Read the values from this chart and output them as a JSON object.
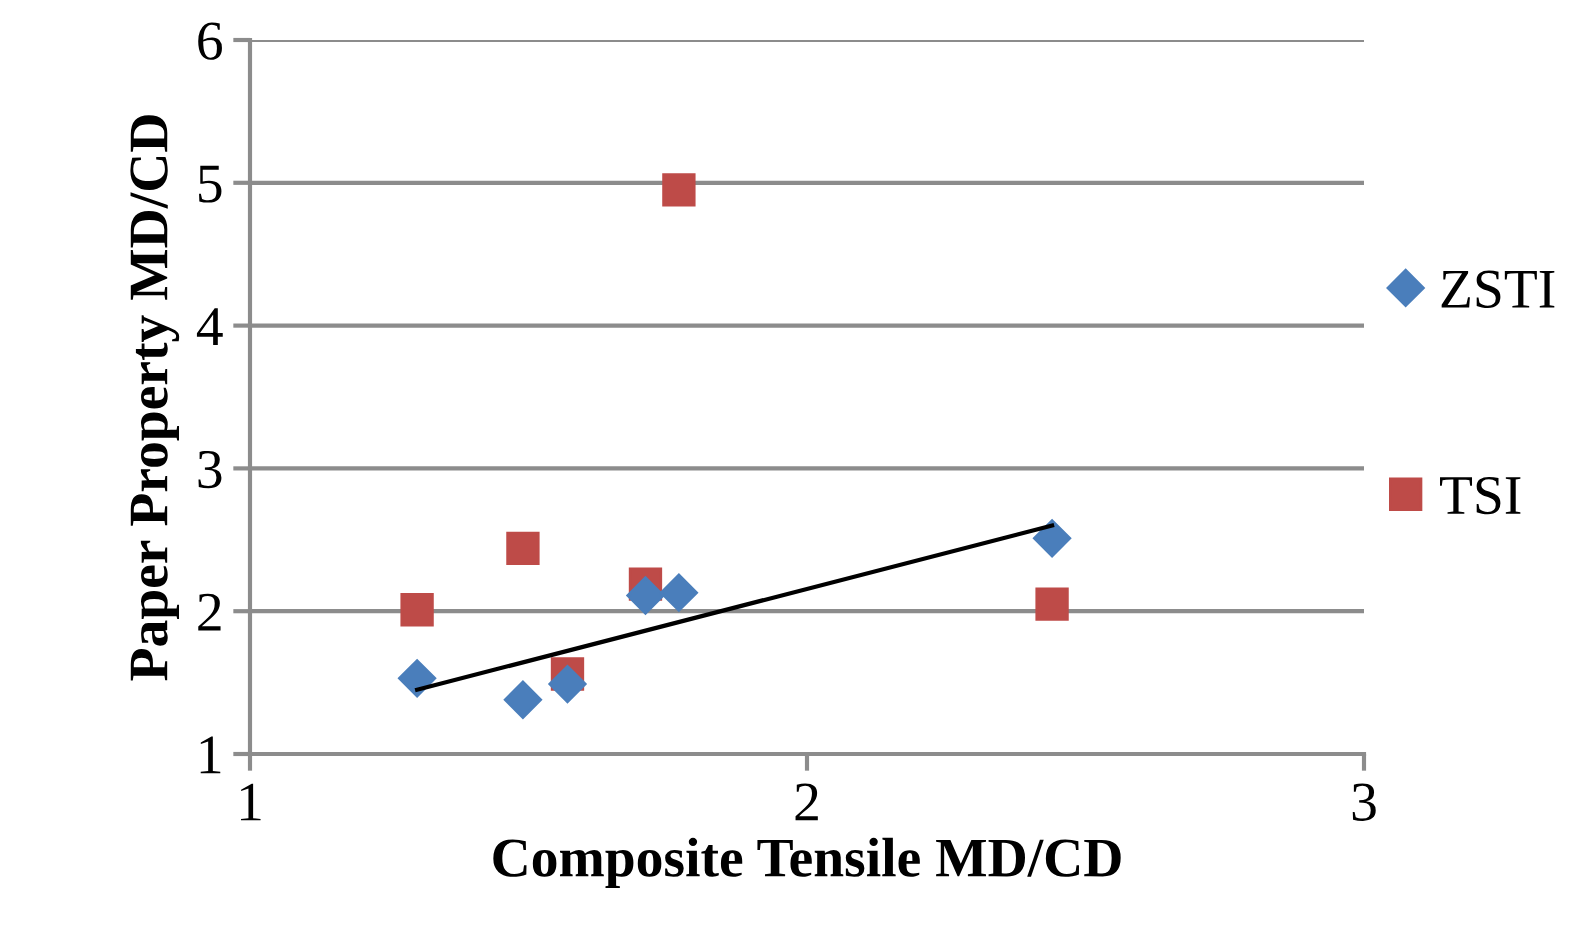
{
  "chart_data": {
    "type": "scatter",
    "xlabel": "Composite Tensile MD/CD",
    "ylabel": "Paper Property MD/CD",
    "xlim": [
      1,
      3
    ],
    "xticks": [
      1,
      2,
      3
    ],
    "ylim": [
      1,
      6
    ],
    "yticks": [
      1,
      2,
      3,
      4,
      5,
      6
    ],
    "grid": "y",
    "legend": "right",
    "series": [
      {
        "name": "ZSTI",
        "color": "#4a7ebb",
        "marker": "diamond",
        "x": [
          1.3,
          1.49,
          1.57,
          1.71,
          1.77,
          2.44
        ],
        "values": [
          1.53,
          1.38,
          1.49,
          2.11,
          2.13,
          2.51
        ]
      },
      {
        "name": "TSI",
        "color": "#be4b48",
        "marker": "square",
        "x": [
          1.3,
          1.49,
          1.57,
          1.71,
          1.77,
          2.44
        ],
        "values": [
          2.01,
          2.44,
          1.56,
          2.19,
          4.95,
          2.05
        ]
      },
      {
        "type": "line",
        "color": "#000000",
        "marker": "none",
        "line_style": "solid",
        "x": [
          1.3,
          2.44
        ],
        "values": [
          1.45,
          2.6
        ]
      }
    ]
  }
}
